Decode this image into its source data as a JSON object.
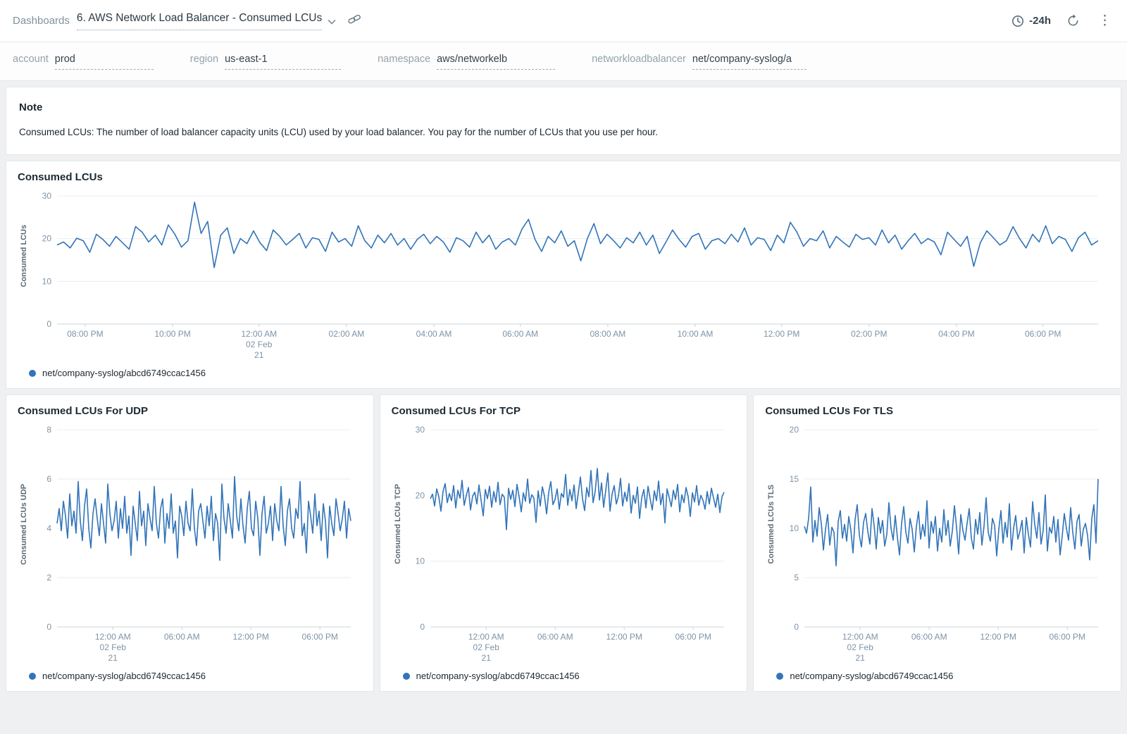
{
  "header": {
    "breadcrumb": "Dashboards",
    "title": "6. AWS Network Load Balancer - Consumed LCUs",
    "time_range": "-24h"
  },
  "icons": {
    "kebab_glyph": "⋮"
  },
  "filters": [
    {
      "label": "account",
      "value": "prod"
    },
    {
      "label": "region",
      "value": "us-east-1"
    },
    {
      "label": "namespace",
      "value": "aws/networkelb"
    },
    {
      "label": "networkloadbalancer",
      "value": "net/company-syslog/a"
    }
  ],
  "note": {
    "title": "Note",
    "body": "Consumed LCUs: The number of load balancer capacity units (LCU) used by your load balancer. You pay for the number of LCUs that you use per hour."
  },
  "theme": {
    "line_color": "#3274b8"
  },
  "chart_data": [
    {
      "type": "line",
      "title": "Consumed LCUs",
      "ylabel": "Consumed LCUs",
      "ylim": [
        0,
        30
      ],
      "yticks": [
        0,
        10,
        20,
        30
      ],
      "grid": true,
      "legend_position": "bottom-left",
      "xticks": [
        {
          "label": "08:00 PM",
          "pos": 0.027
        },
        {
          "label": "10:00 PM",
          "pos": 0.111
        },
        {
          "label": "12:00 AM",
          "pos": 0.194,
          "sub1": "02 Feb",
          "sub2": "21"
        },
        {
          "label": "02:00 AM",
          "pos": 0.278
        },
        {
          "label": "04:00 AM",
          "pos": 0.362
        },
        {
          "label": "06:00 AM",
          "pos": 0.445
        },
        {
          "label": "08:00 AM",
          "pos": 0.529
        },
        {
          "label": "10:00 AM",
          "pos": 0.613
        },
        {
          "label": "12:00 PM",
          "pos": 0.696
        },
        {
          "label": "02:00 PM",
          "pos": 0.78
        },
        {
          "label": "04:00 PM",
          "pos": 0.864
        },
        {
          "label": "06:00 PM",
          "pos": 0.947
        }
      ],
      "series": [
        {
          "name": "net/company-syslog/abcd6749ccac1456",
          "values": [
            18.5,
            19.2,
            17.8,
            20.1,
            19.5,
            16.8,
            21.0,
            19.8,
            18.2,
            20.5,
            19.0,
            17.5,
            22.8,
            21.5,
            19.2,
            20.8,
            18.5,
            23.2,
            21.0,
            18.0,
            19.5,
            28.5,
            21.2,
            24.0,
            13.2,
            20.8,
            22.5,
            16.5,
            20.0,
            18.8,
            21.8,
            19.0,
            17.2,
            22.0,
            20.5,
            18.5,
            19.8,
            21.2,
            17.8,
            20.2,
            19.8,
            17.0,
            21.5,
            19.2,
            20.0,
            18.2,
            23.0,
            19.5,
            17.8,
            20.8,
            19.0,
            21.2,
            18.5,
            20.0,
            17.5,
            19.8,
            21.0,
            18.8,
            20.5,
            19.2,
            16.8,
            20.2,
            19.5,
            18.0,
            21.5,
            19.0,
            20.8,
            17.5,
            19.2,
            20.0,
            18.5,
            22.2,
            24.5,
            19.8,
            17.0,
            20.5,
            19.0,
            21.8,
            18.2,
            19.5,
            14.8,
            20.0,
            23.5,
            18.8,
            21.0,
            19.5,
            17.8,
            20.2,
            19.0,
            21.5,
            18.5,
            20.8,
            16.5,
            19.2,
            22.0,
            19.8,
            18.0,
            20.5,
            21.2,
            17.5,
            19.5,
            20.0,
            18.8,
            21.0,
            19.2,
            22.5,
            18.5,
            20.2,
            19.8,
            17.2,
            20.8,
            19.0,
            23.8,
            21.5,
            18.2,
            20.0,
            19.5,
            21.8,
            17.8,
            20.5,
            19.2,
            18.0,
            21.0,
            19.8,
            20.2,
            18.5,
            22.0,
            19.0,
            20.8,
            17.5,
            19.5,
            21.2,
            18.8,
            20.0,
            19.2,
            16.2,
            21.5,
            19.8,
            18.2,
            20.5,
            13.5,
            19.0,
            21.8,
            20.2,
            18.5,
            19.5,
            22.8,
            20.0,
            17.8,
            21.0,
            19.2,
            23.0,
            18.8,
            20.5,
            19.8,
            17.0,
            20.2,
            21.5,
            18.5,
            19.5
          ]
        }
      ]
    },
    {
      "type": "line",
      "title": "Consumed LCUs For UDP",
      "ylabel": "Consumed LCUs UDP",
      "ylim": [
        0,
        8
      ],
      "yticks": [
        0,
        2,
        4,
        6,
        8
      ],
      "grid": true,
      "legend_position": "bottom-left",
      "xticks": [
        {
          "label": "12:00 AM",
          "pos": 0.19,
          "sub1": "02 Feb",
          "sub2": "21"
        },
        {
          "label": "06:00 AM",
          "pos": 0.425
        },
        {
          "label": "12:00 PM",
          "pos": 0.66
        },
        {
          "label": "06:00 PM",
          "pos": 0.895
        }
      ],
      "series": [
        {
          "name": "net/company-syslog/abcd6749ccac1456",
          "values": [
            4.2,
            4.8,
            3.9,
            5.1,
            4.5,
            3.6,
            5.4,
            4.1,
            4.7,
            3.8,
            5.9,
            4.3,
            3.5,
            4.9,
            5.6,
            4.0,
            3.2,
            4.6,
            5.2,
            4.4,
            3.7,
            5.0,
            4.2,
            3.4,
            5.8,
            4.6,
            3.9,
            4.3,
            5.1,
            3.6,
            4.8,
            4.0,
            5.3,
            3.8,
            4.5,
            2.9,
            4.9,
            4.2,
            3.5,
            5.5,
            4.1,
            4.7,
            3.3,
            5.0,
            4.4,
            3.9,
            5.7,
            4.2,
            3.6,
            4.8,
            5.2,
            3.4,
            4.6,
            4.0,
            5.4,
            3.8,
            4.3,
            2.8,
            4.9,
            4.5,
            3.7,
            5.1,
            4.2,
            3.9,
            5.6,
            4.0,
            3.3,
            4.7,
            5.0,
            4.3,
            3.6,
            4.9,
            4.1,
            5.3,
            3.5,
            4.6,
            4.2,
            2.7,
            5.8,
            4.4,
            3.8,
            5.0,
            4.3,
            3.6,
            6.1,
            4.5,
            3.9,
            5.2,
            4.1,
            3.4,
            4.8,
            5.5,
            4.0,
            3.7,
            5.1,
            4.4,
            2.9,
            4.6,
            5.3,
            3.8,
            4.2,
            4.9,
            3.5,
            5.0,
            4.3,
            3.9,
            5.7,
            4.1,
            3.3,
            4.7,
            5.2,
            4.0,
            3.6,
            4.8,
            4.4,
            5.9,
            3.7,
            4.2,
            3.0,
            5.1,
            4.5,
            3.8,
            5.4,
            4.1,
            4.7,
            3.5,
            5.0,
            4.3,
            2.8,
            4.9,
            4.2,
            3.7,
            5.2,
            4.6,
            3.9,
            4.4,
            5.1,
            3.6,
            4.8,
            4.3
          ]
        }
      ]
    },
    {
      "type": "line",
      "title": "Consumed LCUs For TCP",
      "ylabel": "Consumed LCUs TCP",
      "ylim": [
        0,
        30
      ],
      "yticks": [
        0,
        10,
        20,
        30
      ],
      "grid": true,
      "legend_position": "bottom-left",
      "xticks": [
        {
          "label": "12:00 AM",
          "pos": 0.19,
          "sub1": "02 Feb",
          "sub2": "21"
        },
        {
          "label": "06:00 AM",
          "pos": 0.425
        },
        {
          "label": "12:00 PM",
          "pos": 0.66
        },
        {
          "label": "06:00 PM",
          "pos": 0.895
        }
      ],
      "series": [
        {
          "name": "net/company-syslog/abcd6749ccac1456",
          "values": [
            19.5,
            20.2,
            18.4,
            21.0,
            19.8,
            17.6,
            20.6,
            21.8,
            18.9,
            20.3,
            19.2,
            21.5,
            18.1,
            20.8,
            19.6,
            22.3,
            18.5,
            20.0,
            21.2,
            17.8,
            19.9,
            20.5,
            18.7,
            21.6,
            19.3,
            16.9,
            20.9,
            19.5,
            21.4,
            18.2,
            20.6,
            19.0,
            22.0,
            18.6,
            20.2,
            19.7,
            14.8,
            21.1,
            19.4,
            20.8,
            18.3,
            21.7,
            19.8,
            17.5,
            20.4,
            19.1,
            22.5,
            18.8,
            20.1,
            19.6,
            15.9,
            20.7,
            18.4,
            21.3,
            19.9,
            17.2,
            20.5,
            22.1,
            18.6,
            19.4,
            21.0,
            17.9,
            20.3,
            19.7,
            23.2,
            18.5,
            20.9,
            19.2,
            21.6,
            18.0,
            20.4,
            22.8,
            19.5,
            17.7,
            21.2,
            19.8,
            23.8,
            18.9,
            20.6,
            24.1,
            19.3,
            21.9,
            18.2,
            20.8,
            23.4,
            17.6,
            20.2,
            21.5,
            18.7,
            19.9,
            22.6,
            18.4,
            20.5,
            19.1,
            21.8,
            17.3,
            20.0,
            18.8,
            21.3,
            16.5,
            19.6,
            20.9,
            18.1,
            21.4,
            19.5,
            17.8,
            20.7,
            19.2,
            22.2,
            18.6,
            20.3,
            15.8,
            21.0,
            19.7,
            18.3,
            20.8,
            19.4,
            21.7,
            17.5,
            20.1,
            18.9,
            21.2,
            19.8,
            16.8,
            20.4,
            19.0,
            21.5,
            18.5,
            20.0,
            19.3,
            17.9,
            20.6,
            18.7,
            21.1,
            19.6,
            18.2,
            20.2,
            17.4,
            19.8,
            20.5
          ]
        }
      ]
    },
    {
      "type": "line",
      "title": "Consumed LCUs For TLS",
      "ylabel": "Consumed LCUs TLS",
      "ylim": [
        0,
        20
      ],
      "yticks": [
        0,
        5,
        10,
        15,
        20
      ],
      "grid": true,
      "legend_position": "bottom-left",
      "xticks": [
        {
          "label": "12:00 AM",
          "pos": 0.19,
          "sub1": "02 Feb",
          "sub2": "21"
        },
        {
          "label": "06:00 AM",
          "pos": 0.425
        },
        {
          "label": "12:00 PM",
          "pos": 0.66
        },
        {
          "label": "06:00 PM",
          "pos": 0.895
        }
      ],
      "series": [
        {
          "name": "net/company-syslog/abcd6749ccac1456",
          "values": [
            10.2,
            9.5,
            11.0,
            14.2,
            8.6,
            10.8,
            9.2,
            12.1,
            10.5,
            7.8,
            9.9,
            11.4,
            8.3,
            10.1,
            9.6,
            6.2,
            10.7,
            11.8,
            9.0,
            10.4,
            8.7,
            11.2,
            9.8,
            7.5,
            10.9,
            12.4,
            9.3,
            8.1,
            10.6,
            11.5,
            9.7,
            8.4,
            12.0,
            10.3,
            7.9,
            11.1,
            9.5,
            10.8,
            8.2,
            9.4,
            12.6,
            10.0,
            8.8,
            11.3,
            9.1,
            7.3,
            10.5,
            12.2,
            9.6,
            8.5,
            11.0,
            9.9,
            7.6,
            10.2,
            11.7,
            8.9,
            10.4,
            9.2,
            12.8,
            8.0,
            10.7,
            9.5,
            11.2,
            7.7,
            10.0,
            8.6,
            11.9,
            9.3,
            10.8,
            8.2,
            9.7,
            12.3,
            10.1,
            7.4,
            11.4,
            9.8,
            8.8,
            10.5,
            12.0,
            9.0,
            7.9,
            10.9,
            9.4,
            11.6,
            8.3,
            10.2,
            13.1,
            9.6,
            8.7,
            11.0,
            10.3,
            7.2,
            9.9,
            11.8,
            8.5,
            10.6,
            9.1,
            12.5,
            7.8,
            10.0,
            11.3,
            8.9,
            9.7,
            10.8,
            7.5,
            11.1,
            9.4,
            8.1,
            12.7,
            10.4,
            9.0,
            11.6,
            8.4,
            9.8,
            13.4,
            7.7,
            10.1,
            9.5,
            11.2,
            8.6,
            10.9,
            7.3,
            9.2,
            11.5,
            10.0,
            8.8,
            12.1,
            9.6,
            7.9,
            10.7,
            11.4,
            8.2,
            9.9,
            10.5,
            9.3,
            6.8,
            11.0,
            12.4,
            8.5,
            15.0
          ]
        }
      ]
    }
  ]
}
